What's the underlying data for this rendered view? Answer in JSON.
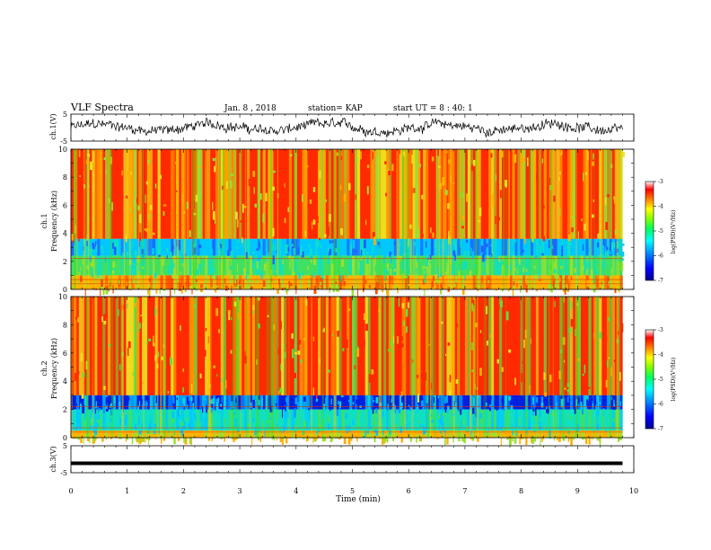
{
  "header": {
    "title": "VLF Spectra",
    "date": "Jan. 8 , 2018",
    "station": "station= KAP",
    "start": "start UT = 8 : 40: 1"
  },
  "chart_data": [
    {
      "type": "line",
      "panel": "ch1-waveform",
      "ylabel": "ch.1(V)",
      "yticks": [
        "5",
        "-5"
      ],
      "ylim": [
        -5,
        5
      ],
      "xlim": [
        0,
        10
      ],
      "x_span_min": [
        0,
        9.8
      ],
      "description_level": "noisy trace oscillating roughly between -3.5 and 3.5 V"
    },
    {
      "type": "heatmap",
      "panel": "ch1-spectrogram",
      "ylabel": "ch.1\nFrequency (kHz)",
      "ylabel_lines": [
        "ch.1",
        "Frequency (kHz)"
      ],
      "yticks": [
        "10",
        "8",
        "6",
        "4",
        "2",
        "0"
      ],
      "ylim": [
        0,
        10
      ],
      "xlim": [
        0,
        10
      ],
      "x_span_min": [
        0,
        9.8
      ],
      "bands": [
        {
          "f_from": 10.0,
          "f_to": 3.6,
          "level": "high",
          "color_mix": [
            "#ff2a00",
            "#ffb000",
            "#f0e020",
            "#9ce030"
          ]
        },
        {
          "f_from": 3.6,
          "f_to": 2.4,
          "level": "low",
          "color_mix": [
            "#00c8ff",
            "#10e0c0",
            "#2060ff"
          ]
        },
        {
          "f_from": 2.4,
          "f_to": 1.0,
          "level": "mid",
          "color_mix": [
            "#40e060",
            "#10e0c0",
            "#9ce030"
          ]
        },
        {
          "f_from": 1.0,
          "f_to": 0.0,
          "level": "mixed",
          "color_mix": [
            "#ffb000",
            "#9ce030",
            "#ff5000"
          ]
        }
      ],
      "colorbar": {
        "label": "log(PSD)(V²/Hz)",
        "ticks": [
          "-3",
          "-4",
          "-5",
          "-6",
          "-7"
        ],
        "range": [
          -7,
          -3
        ]
      }
    },
    {
      "type": "heatmap",
      "panel": "ch2-spectrogram",
      "ylabel": "ch.2\nFrequency (kHz)",
      "ylabel_lines": [
        "ch.2",
        "Frequency (kHz)"
      ],
      "yticks": [
        "10",
        "8",
        "6",
        "4",
        "2",
        "0"
      ],
      "ylim": [
        0,
        10
      ],
      "xlim": [
        0,
        10
      ],
      "x_span_min": [
        0,
        9.8
      ],
      "bands": [
        {
          "f_from": 10.0,
          "f_to": 3.0,
          "level": "high",
          "color_mix": [
            "#ff2a00",
            "#ffb000",
            "#f0e020",
            "#60e040"
          ]
        },
        {
          "f_from": 3.0,
          "f_to": 2.0,
          "level": "low",
          "color_mix": [
            "#0020e0",
            "#00a0ff",
            "#10d0e0"
          ]
        },
        {
          "f_from": 2.0,
          "f_to": 0.5,
          "level": "lowmid",
          "color_mix": [
            "#10e0c0",
            "#40e060",
            "#00c8ff"
          ]
        },
        {
          "f_from": 0.5,
          "f_to": 0.0,
          "level": "mixed",
          "color_mix": [
            "#ffb000",
            "#9ce030"
          ]
        }
      ],
      "colorbar": {
        "label": "log(PSD)(V²/Hz)",
        "ticks": [
          "-3",
          "-4",
          "-5",
          "-6",
          "-7"
        ],
        "range": [
          -7,
          -3
        ]
      }
    },
    {
      "type": "line",
      "panel": "ch3-waveform",
      "ylabel": "ch.3(V)",
      "yticks": [
        "5",
        "-5"
      ],
      "ylim": [
        -5,
        5
      ],
      "xlim": [
        0,
        10
      ],
      "x_span_min": [
        0,
        9.8
      ],
      "level_V": -1.5
    }
  ],
  "xaxis": {
    "label": "Time (min)",
    "ticks": [
      "0",
      "1",
      "2",
      "3",
      "4",
      "5",
      "6",
      "7",
      "8",
      "9",
      "10"
    ],
    "range": [
      0,
      10
    ]
  },
  "colors": {
    "colormap": [
      "#000090",
      "#0000ff",
      "#0080ff",
      "#00ffff",
      "#00ff80",
      "#40ff00",
      "#ffff00",
      "#ff8000",
      "#ff0000",
      "#ffffff"
    ],
    "frame": "#000000"
  }
}
